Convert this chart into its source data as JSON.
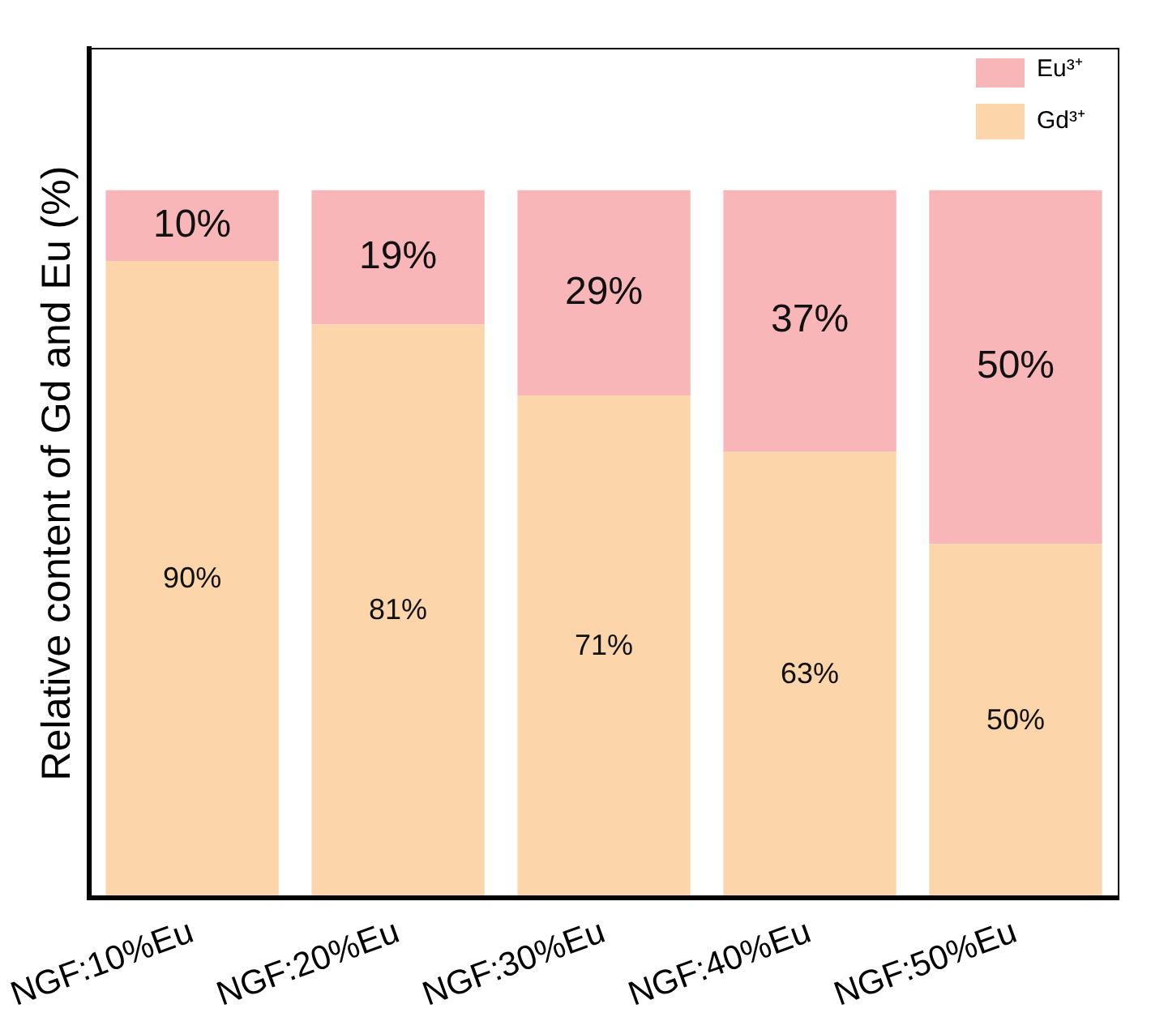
{
  "chart_data": {
    "type": "bar",
    "stacked": true,
    "ylabel": "Relative content of Gd and Eu (%)",
    "categories": [
      "NGF:10%Eu",
      "NGF:20%Eu",
      "NGF:30%Eu",
      "NGF:40%Eu",
      "NGF:50%Eu"
    ],
    "series": [
      {
        "name": "Gd³⁺",
        "color": "#fcd6aa",
        "values": [
          90,
          81,
          71,
          63,
          50
        ],
        "value_labels": [
          "90%",
          "81%",
          "71%",
          "63%",
          "50%"
        ]
      },
      {
        "name": "Eu³⁺",
        "color": "#f9b6b8",
        "values": [
          10,
          19,
          29,
          37,
          50
        ],
        "value_labels": [
          "10%",
          "19%",
          "29%",
          "37%",
          "50%"
        ]
      }
    ],
    "tick_labels": "x",
    "grid": false,
    "legend": "top right"
  }
}
